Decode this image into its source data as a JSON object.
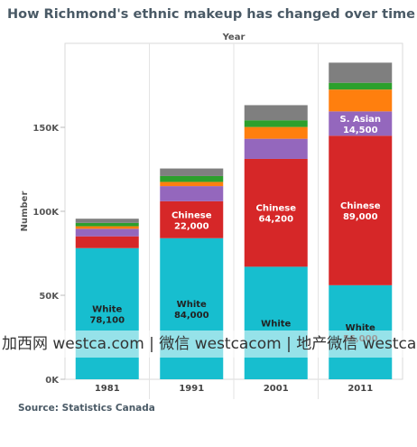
{
  "title": "How Richmond's ethnic makeup has changed over time",
  "source": "Source: Statistics Canada",
  "watermark": "加西网 westca.com | 微信 westcacom | 地产微信 westcahouse",
  "chart_data": {
    "type": "bar",
    "stacked": true,
    "xlabel": "Year",
    "ylabel": "Number",
    "ylim": [
      0,
      200000
    ],
    "yticks": [
      0,
      50000,
      100000,
      150000
    ],
    "ytick_labels": [
      "0K",
      "50K",
      "100K",
      "150K"
    ],
    "categories": [
      "1981",
      "1991",
      "2001",
      "2011"
    ],
    "grid": false,
    "legend": "none",
    "series": [
      {
        "name": "White",
        "color": "#17becf",
        "values": [
          78100,
          84000,
          67000,
          56000
        ],
        "labels": [
          "White\n78,100",
          "White\n84,000",
          "White",
          "White\n56,000"
        ]
      },
      {
        "name": "Chinese",
        "color": "#d62728",
        "values": [
          7000,
          22000,
          64200,
          89000
        ],
        "labels": [
          "",
          "Chinese\n22,000",
          "Chinese\n64,200",
          "Chinese\n89,000"
        ]
      },
      {
        "name": "S. Asian",
        "color": "#9467bd",
        "values": [
          4500,
          9000,
          12000,
          14500
        ],
        "labels": [
          "",
          "",
          "",
          "S. Asian\n14,500"
        ]
      },
      {
        "name": "",
        "color": "#ff7f0e",
        "values": [
          1500,
          2500,
          7000,
          13000
        ],
        "labels": [
          "",
          "",
          "",
          ""
        ]
      },
      {
        "name": "",
        "color": "#2ca02c",
        "values": [
          2000,
          3500,
          4000,
          4000
        ],
        "labels": [
          "",
          "",
          "",
          ""
        ]
      },
      {
        "name": "",
        "color": "#7f7f7f",
        "values": [
          2500,
          4500,
          9000,
          12000
        ],
        "labels": [
          "",
          "",
          "",
          ""
        ]
      }
    ]
  }
}
